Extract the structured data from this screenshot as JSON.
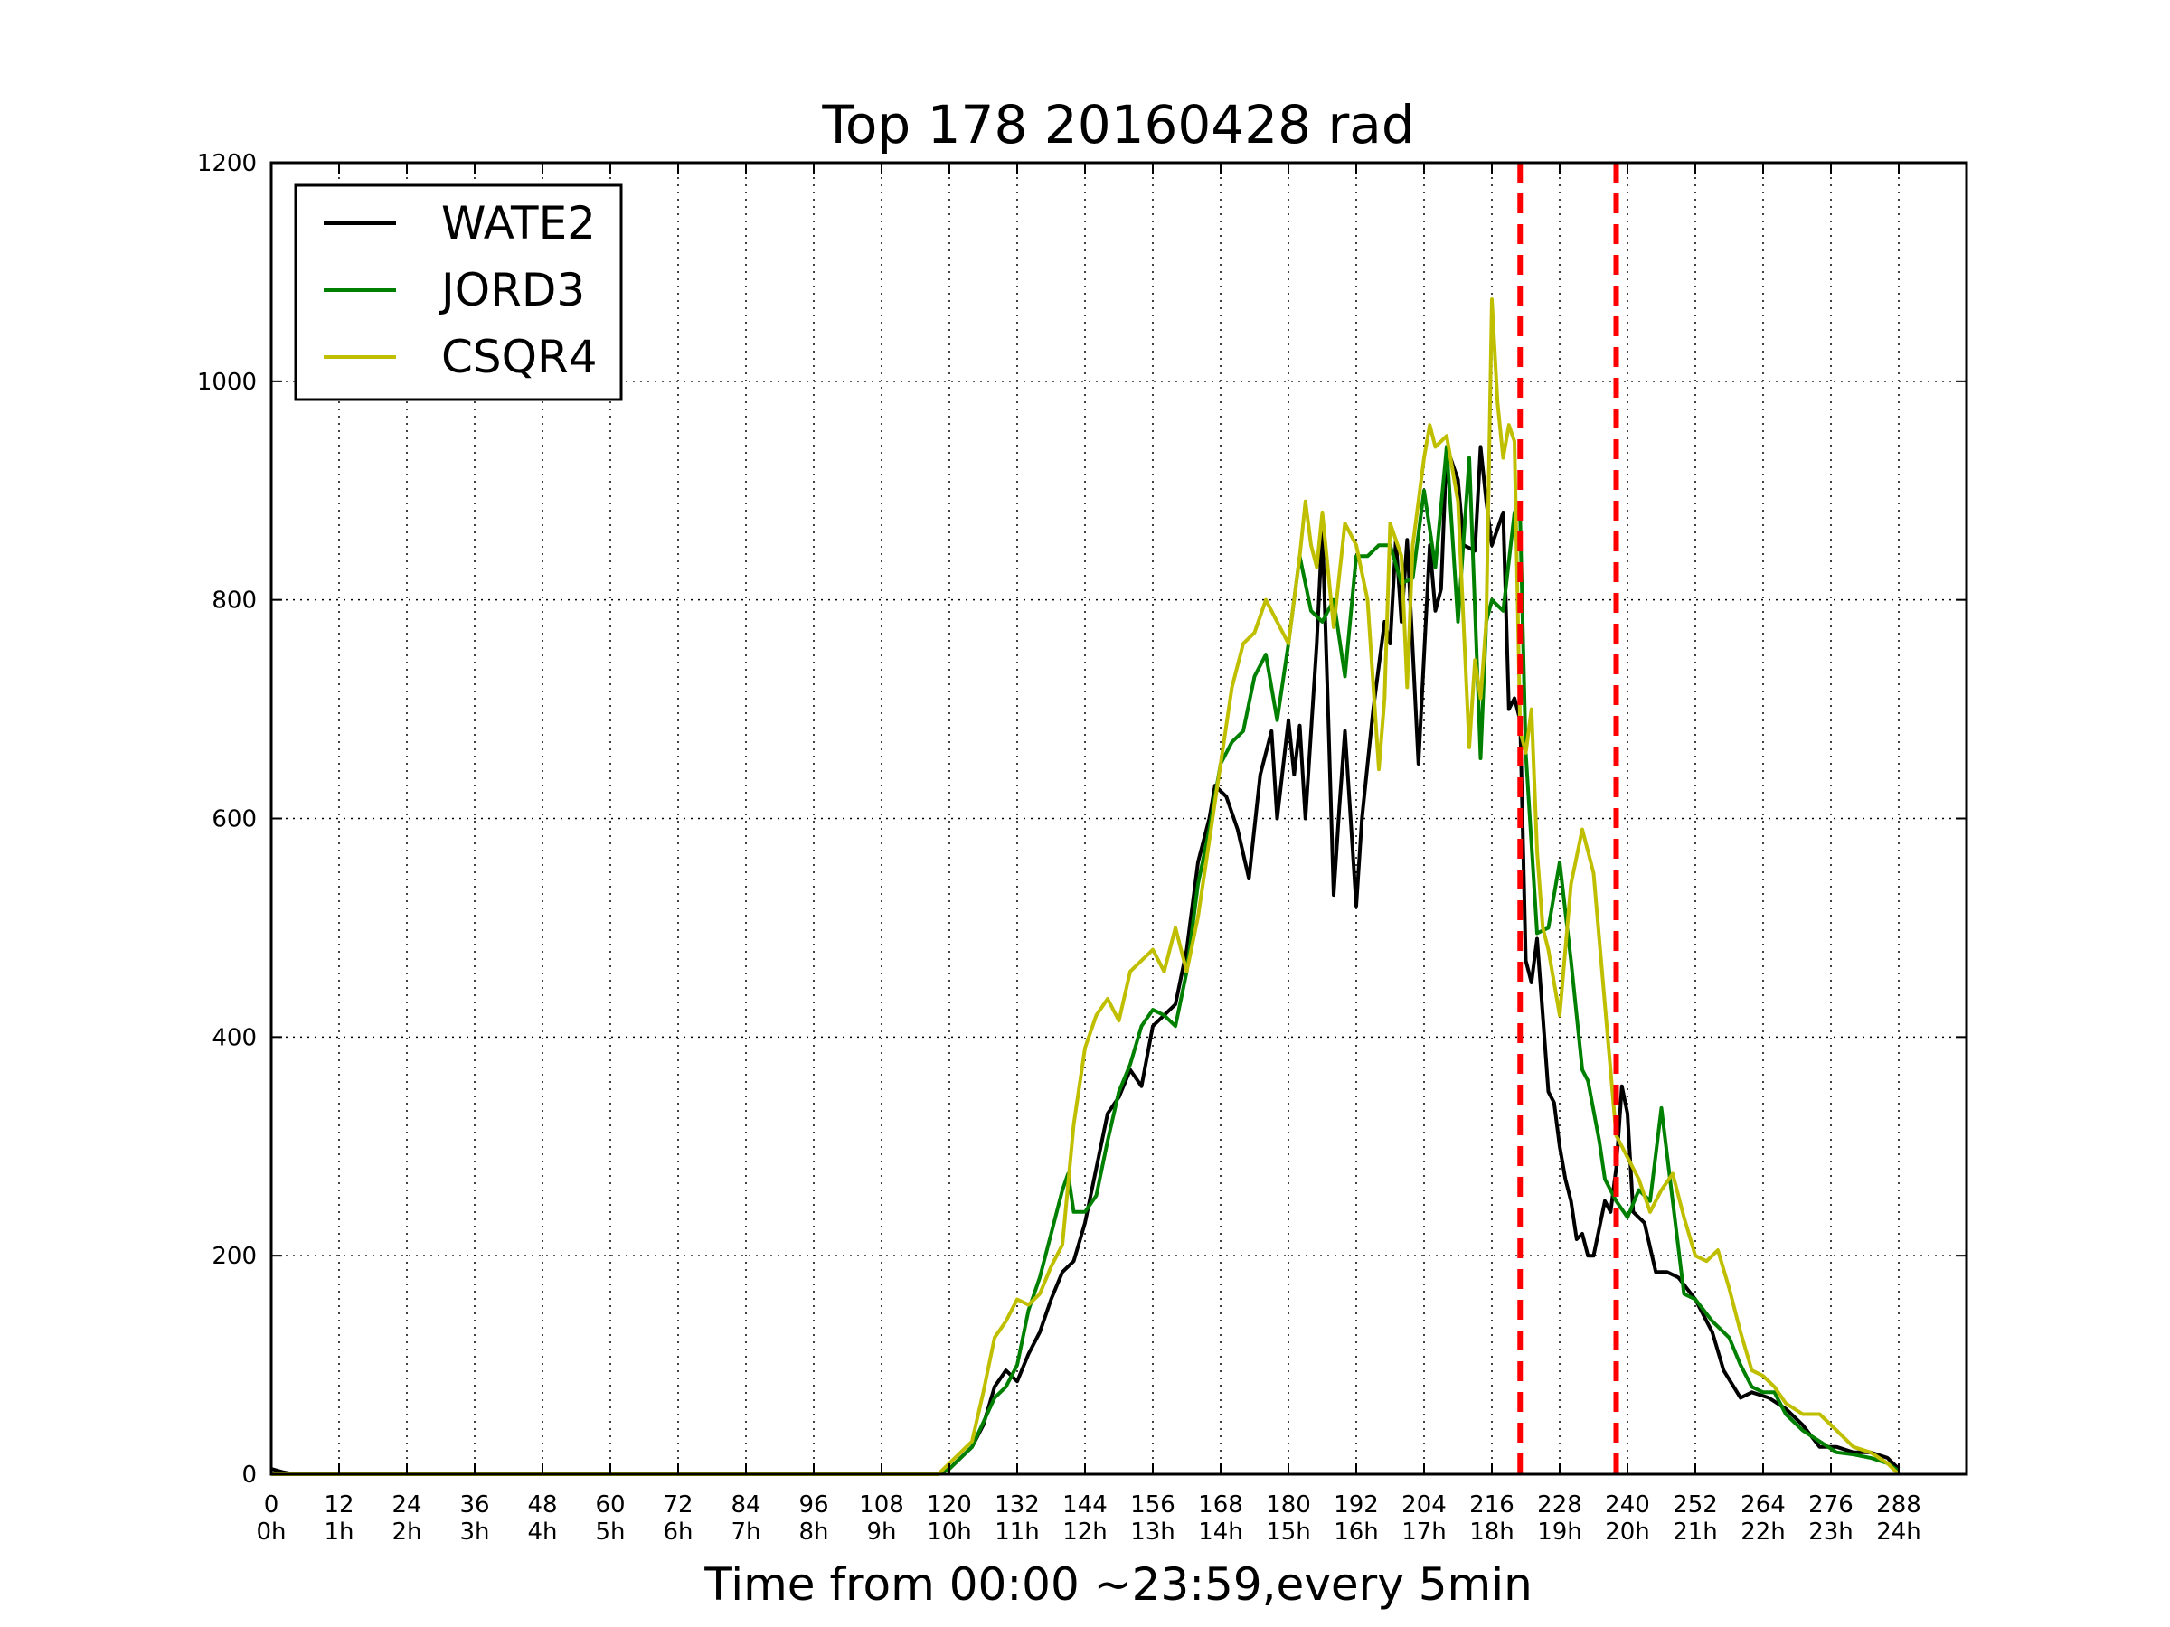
{
  "chart_data": {
    "type": "line",
    "title": "Top 178 20160428 rad",
    "xlabel": "Time from 00:00 ~23:59,every 5min",
    "ylabel": "",
    "xlim": [
      0,
      300
    ],
    "ylim": [
      0,
      1200
    ],
    "grid": true,
    "legend_position": "top-left",
    "x_ticks": [
      0,
      12,
      24,
      36,
      48,
      60,
      72,
      84,
      96,
      108,
      120,
      132,
      144,
      156,
      168,
      180,
      192,
      204,
      216,
      228,
      240,
      252,
      264,
      276,
      288
    ],
    "x_tick_hours": [
      "0h",
      "1h",
      "2h",
      "3h",
      "4h",
      "5h",
      "6h",
      "7h",
      "8h",
      "9h",
      "10h",
      "11h",
      "12h",
      "13h",
      "14h",
      "15h",
      "16h",
      "17h",
      "18h",
      "19h",
      "20h",
      "21h",
      "22h",
      "23h",
      "24h"
    ],
    "y_ticks": [
      0,
      200,
      400,
      600,
      800,
      1000,
      1200
    ],
    "vlines": [
      {
        "x": 221,
        "color": "#ff0000"
      },
      {
        "x": 238,
        "color": "#ff0000"
      }
    ],
    "series": [
      {
        "name": "WATE2",
        "color": "#000000",
        "points": [
          [
            0,
            5
          ],
          [
            2,
            2
          ],
          [
            4,
            0
          ],
          [
            118,
            0
          ],
          [
            120,
            5
          ],
          [
            124,
            25
          ],
          [
            126,
            45
          ],
          [
            128,
            80
          ],
          [
            130,
            95
          ],
          [
            132,
            85
          ],
          [
            134,
            110
          ],
          [
            136,
            130
          ],
          [
            138,
            160
          ],
          [
            140,
            185
          ],
          [
            142,
            195
          ],
          [
            144,
            230
          ],
          [
            146,
            280
          ],
          [
            148,
            330
          ],
          [
            150,
            345
          ],
          [
            152,
            370
          ],
          [
            154,
            355
          ],
          [
            156,
            410
          ],
          [
            158,
            420
          ],
          [
            160,
            430
          ],
          [
            162,
            480
          ],
          [
            164,
            560
          ],
          [
            166,
            600
          ],
          [
            167,
            630
          ],
          [
            169,
            620
          ],
          [
            171,
            590
          ],
          [
            173,
            545
          ],
          [
            175,
            640
          ],
          [
            177,
            680
          ],
          [
            178,
            600
          ],
          [
            180,
            690
          ],
          [
            181,
            640
          ],
          [
            182,
            685
          ],
          [
            183,
            600
          ],
          [
            185,
            760
          ],
          [
            186,
            865
          ],
          [
            187,
            700
          ],
          [
            188,
            530
          ],
          [
            189,
            610
          ],
          [
            190,
            680
          ],
          [
            191,
            600
          ],
          [
            192,
            520
          ],
          [
            193,
            600
          ],
          [
            195,
            700
          ],
          [
            197,
            780
          ],
          [
            198,
            760
          ],
          [
            199,
            855
          ],
          [
            200,
            780
          ],
          [
            201,
            855
          ],
          [
            203,
            650
          ],
          [
            205,
            850
          ],
          [
            206,
            790
          ],
          [
            207,
            810
          ],
          [
            208,
            940
          ],
          [
            210,
            910
          ],
          [
            211,
            850
          ],
          [
            213,
            845
          ],
          [
            214,
            940
          ],
          [
            215,
            890
          ],
          [
            216,
            850
          ],
          [
            218,
            880
          ],
          [
            219,
            700
          ],
          [
            220,
            710
          ],
          [
            221,
            690
          ],
          [
            222,
            470
          ],
          [
            223,
            450
          ],
          [
            224,
            490
          ],
          [
            225,
            420
          ],
          [
            226,
            350
          ],
          [
            227,
            340
          ],
          [
            228,
            300
          ],
          [
            229,
            270
          ],
          [
            230,
            250
          ],
          [
            231,
            215
          ],
          [
            232,
            220
          ],
          [
            233,
            200
          ],
          [
            234,
            200
          ],
          [
            236,
            250
          ],
          [
            237,
            240
          ],
          [
            238,
            280
          ],
          [
            239,
            355
          ],
          [
            240,
            330
          ],
          [
            241,
            240
          ],
          [
            243,
            230
          ],
          [
            245,
            185
          ],
          [
            247,
            185
          ],
          [
            249,
            180
          ],
          [
            252,
            160
          ],
          [
            255,
            130
          ],
          [
            257,
            95
          ],
          [
            260,
            70
          ],
          [
            262,
            75
          ],
          [
            265,
            70
          ],
          [
            268,
            60
          ],
          [
            271,
            45
          ],
          [
            274,
            25
          ],
          [
            277,
            25
          ],
          [
            280,
            20
          ],
          [
            283,
            20
          ],
          [
            286,
            15
          ],
          [
            288,
            5
          ]
        ]
      },
      {
        "name": "JORD3",
        "color": "#008000",
        "points": [
          [
            0,
            0
          ],
          [
            118,
            0
          ],
          [
            120,
            5
          ],
          [
            124,
            25
          ],
          [
            128,
            70
          ],
          [
            130,
            80
          ],
          [
            132,
            100
          ],
          [
            134,
            150
          ],
          [
            136,
            180
          ],
          [
            138,
            220
          ],
          [
            140,
            260
          ],
          [
            141,
            275
          ],
          [
            142,
            240
          ],
          [
            144,
            240
          ],
          [
            146,
            255
          ],
          [
            148,
            305
          ],
          [
            150,
            350
          ],
          [
            152,
            375
          ],
          [
            154,
            410
          ],
          [
            156,
            425
          ],
          [
            158,
            420
          ],
          [
            160,
            410
          ],
          [
            162,
            460
          ],
          [
            164,
            540
          ],
          [
            166,
            590
          ],
          [
            168,
            650
          ],
          [
            170,
            670
          ],
          [
            172,
            680
          ],
          [
            174,
            730
          ],
          [
            176,
            750
          ],
          [
            178,
            690
          ],
          [
            180,
            760
          ],
          [
            182,
            840
          ],
          [
            184,
            790
          ],
          [
            186,
            780
          ],
          [
            188,
            800
          ],
          [
            190,
            730
          ],
          [
            192,
            840
          ],
          [
            194,
            840
          ],
          [
            196,
            850
          ],
          [
            198,
            850
          ],
          [
            200,
            815
          ],
          [
            202,
            820
          ],
          [
            204,
            900
          ],
          [
            206,
            830
          ],
          [
            208,
            940
          ],
          [
            210,
            780
          ],
          [
            212,
            930
          ],
          [
            214,
            655
          ],
          [
            215,
            780
          ],
          [
            216,
            800
          ],
          [
            218,
            790
          ],
          [
            220,
            880
          ],
          [
            221,
            875
          ],
          [
            222,
            660
          ],
          [
            224,
            495
          ],
          [
            226,
            500
          ],
          [
            228,
            560
          ],
          [
            230,
            470
          ],
          [
            232,
            370
          ],
          [
            233,
            360
          ],
          [
            235,
            305
          ],
          [
            236,
            270
          ],
          [
            238,
            250
          ],
          [
            240,
            235
          ],
          [
            242,
            260
          ],
          [
            244,
            250
          ],
          [
            246,
            335
          ],
          [
            248,
            250
          ],
          [
            250,
            165
          ],
          [
            252,
            160
          ],
          [
            255,
            140
          ],
          [
            258,
            125
          ],
          [
            260,
            100
          ],
          [
            262,
            80
          ],
          [
            264,
            75
          ],
          [
            266,
            75
          ],
          [
            268,
            55
          ],
          [
            271,
            40
          ],
          [
            274,
            30
          ],
          [
            277,
            20
          ],
          [
            280,
            18
          ],
          [
            283,
            15
          ],
          [
            286,
            10
          ],
          [
            288,
            3
          ]
        ]
      },
      {
        "name": "CSQR4",
        "color": "#bfbf00",
        "points": [
          [
            0,
            0
          ],
          [
            118,
            0
          ],
          [
            120,
            10
          ],
          [
            124,
            30
          ],
          [
            126,
            75
          ],
          [
            128,
            125
          ],
          [
            130,
            140
          ],
          [
            132,
            160
          ],
          [
            134,
            155
          ],
          [
            136,
            165
          ],
          [
            138,
            190
          ],
          [
            140,
            210
          ],
          [
            142,
            320
          ],
          [
            144,
            390
          ],
          [
            146,
            420
          ],
          [
            148,
            435
          ],
          [
            150,
            415
          ],
          [
            152,
            460
          ],
          [
            154,
            470
          ],
          [
            156,
            480
          ],
          [
            158,
            460
          ],
          [
            160,
            500
          ],
          [
            162,
            460
          ],
          [
            164,
            510
          ],
          [
            166,
            580
          ],
          [
            168,
            650
          ],
          [
            170,
            720
          ],
          [
            172,
            760
          ],
          [
            174,
            770
          ],
          [
            176,
            800
          ],
          [
            178,
            780
          ],
          [
            180,
            760
          ],
          [
            182,
            840
          ],
          [
            183,
            890
          ],
          [
            184,
            850
          ],
          [
            185,
            830
          ],
          [
            186,
            880
          ],
          [
            188,
            775
          ],
          [
            190,
            870
          ],
          [
            192,
            850
          ],
          [
            194,
            800
          ],
          [
            196,
            645
          ],
          [
            197,
            710
          ],
          [
            198,
            870
          ],
          [
            200,
            840
          ],
          [
            201,
            720
          ],
          [
            202,
            850
          ],
          [
            204,
            930
          ],
          [
            205,
            960
          ],
          [
            206,
            940
          ],
          [
            208,
            950
          ],
          [
            210,
            890
          ],
          [
            212,
            665
          ],
          [
            213,
            745
          ],
          [
            214,
            710
          ],
          [
            215,
            780
          ],
          [
            216,
            1075
          ],
          [
            217,
            980
          ],
          [
            218,
            930
          ],
          [
            219,
            960
          ],
          [
            220,
            945
          ],
          [
            221,
            680
          ],
          [
            222,
            660
          ],
          [
            223,
            700
          ],
          [
            224,
            570
          ],
          [
            225,
            500
          ],
          [
            226,
            480
          ],
          [
            228,
            420
          ],
          [
            230,
            540
          ],
          [
            232,
            590
          ],
          [
            234,
            550
          ],
          [
            236,
            430
          ],
          [
            238,
            310
          ],
          [
            240,
            290
          ],
          [
            242,
            270
          ],
          [
            244,
            240
          ],
          [
            246,
            260
          ],
          [
            248,
            275
          ],
          [
            250,
            235
          ],
          [
            252,
            200
          ],
          [
            254,
            195
          ],
          [
            256,
            205
          ],
          [
            258,
            170
          ],
          [
            260,
            130
          ],
          [
            262,
            95
          ],
          [
            264,
            90
          ],
          [
            266,
            80
          ],
          [
            268,
            65
          ],
          [
            271,
            55
          ],
          [
            274,
            55
          ],
          [
            277,
            40
          ],
          [
            280,
            25
          ],
          [
            283,
            20
          ],
          [
            286,
            10
          ],
          [
            288,
            0
          ]
        ]
      }
    ]
  }
}
